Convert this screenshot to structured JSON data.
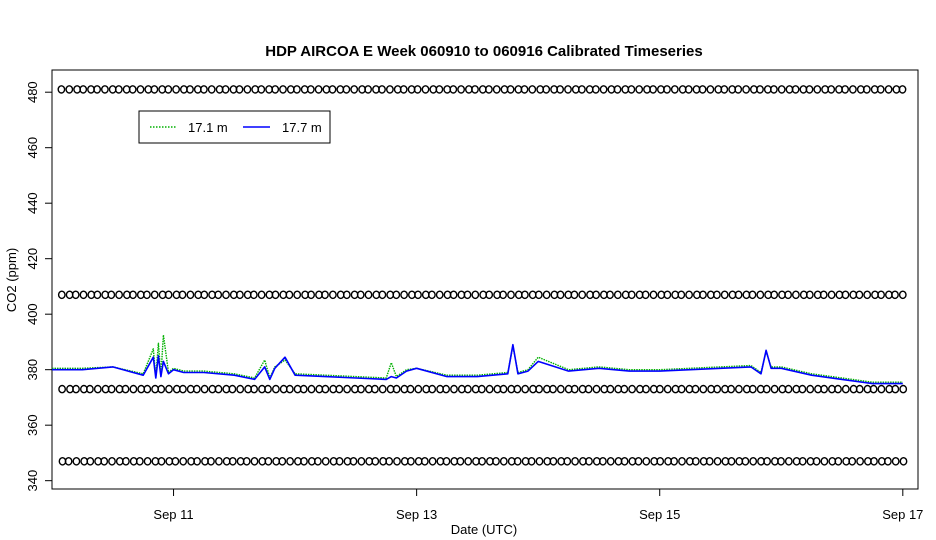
{
  "chart_data": {
    "type": "line",
    "title": "HDP AIRCOA E  Week 060910 to 060916  Calibrated Timeseries",
    "xlabel": "Date (UTC)",
    "ylabel": "CO2 (ppm)",
    "xlim": [
      "2006-09-10 00:00",
      "2006-09-17 03:00"
    ],
    "ylim": [
      337,
      488
    ],
    "x_ticks": [
      {
        "x": "2006-09-11",
        "label": "Sep 11"
      },
      {
        "x": "2006-09-13",
        "label": "Sep 13"
      },
      {
        "x": "2006-09-15",
        "label": "Sep 15"
      },
      {
        "x": "2006-09-17",
        "label": "Sep 17"
      }
    ],
    "y_ticks": [
      340,
      360,
      380,
      400,
      420,
      440,
      460,
      480
    ],
    "legend": {
      "placement": "top-left",
      "entries": [
        {
          "label": "17.1 m",
          "color": "#00b000",
          "style": "dotted"
        },
        {
          "label": "17.7 m",
          "color": "#0000ff",
          "style": "solid"
        }
      ]
    },
    "series": [
      {
        "name": "17.1 m",
        "color": "#00b000",
        "x": [
          "2006-09-10 00:00",
          "2006-09-10 06:00",
          "2006-09-10 12:00",
          "2006-09-10 18:00",
          "2006-09-10 20:00",
          "2006-09-10 20:30",
          "2006-09-10 21:00",
          "2006-09-10 21:30",
          "2006-09-10 22:00",
          "2006-09-10 23:00",
          "2006-09-11 00:00",
          "2006-09-11 02:00",
          "2006-09-11 06:00",
          "2006-09-11 12:00",
          "2006-09-11 16:00",
          "2006-09-11 18:00",
          "2006-09-11 19:00",
          "2006-09-11 20:00",
          "2006-09-11 22:00",
          "2006-09-12 00:00",
          "2006-09-12 06:00",
          "2006-09-12 12:00",
          "2006-09-12 18:00",
          "2006-09-12 19:00",
          "2006-09-12 20:00",
          "2006-09-12 22:00",
          "2006-09-13 00:00",
          "2006-09-13 06:00",
          "2006-09-13 12:00",
          "2006-09-13 18:00",
          "2006-09-13 19:00",
          "2006-09-13 20:00",
          "2006-09-13 22:00",
          "2006-09-14 00:00",
          "2006-09-14 06:00",
          "2006-09-14 12:00",
          "2006-09-14 18:00",
          "2006-09-15 00:00",
          "2006-09-15 06:00",
          "2006-09-15 12:00",
          "2006-09-15 18:00",
          "2006-09-15 20:00",
          "2006-09-15 21:00",
          "2006-09-15 22:00",
          "2006-09-16 00:00",
          "2006-09-16 06:00",
          "2006-09-16 12:00",
          "2006-09-16 18:00",
          "2006-09-17 00:00"
        ],
        "values": [
          380.5,
          380.5,
          381.0,
          378.5,
          387.5,
          377.5,
          389.5,
          378.0,
          392.5,
          379.0,
          380.5,
          379.5,
          379.5,
          378.5,
          377.0,
          383.5,
          377.0,
          381.0,
          383.5,
          378.5,
          378.0,
          377.5,
          377.0,
          382.5,
          377.5,
          380.0,
          380.5,
          378.0,
          378.0,
          379.0,
          388.5,
          379.0,
          380.0,
          384.5,
          380.0,
          381.0,
          380.0,
          380.0,
          380.5,
          381.0,
          381.5,
          379.0,
          386.5,
          381.0,
          381.0,
          378.5,
          377.0,
          375.5,
          375.5
        ]
      },
      {
        "name": "17.7 m",
        "color": "#0000ff",
        "x": [
          "2006-09-10 00:00",
          "2006-09-10 06:00",
          "2006-09-10 12:00",
          "2006-09-10 18:00",
          "2006-09-10 20:00",
          "2006-09-10 20:30",
          "2006-09-10 21:00",
          "2006-09-10 21:30",
          "2006-09-10 22:00",
          "2006-09-10 23:00",
          "2006-09-11 00:00",
          "2006-09-11 02:00",
          "2006-09-11 06:00",
          "2006-09-11 12:00",
          "2006-09-11 16:00",
          "2006-09-11 18:00",
          "2006-09-11 19:00",
          "2006-09-11 20:00",
          "2006-09-11 22:00",
          "2006-09-12 00:00",
          "2006-09-12 06:00",
          "2006-09-12 12:00",
          "2006-09-12 18:00",
          "2006-09-12 19:00",
          "2006-09-12 20:00",
          "2006-09-12 22:00",
          "2006-09-13 00:00",
          "2006-09-13 06:00",
          "2006-09-13 12:00",
          "2006-09-13 18:00",
          "2006-09-13 19:00",
          "2006-09-13 20:00",
          "2006-09-13 22:00",
          "2006-09-14 00:00",
          "2006-09-14 06:00",
          "2006-09-14 12:00",
          "2006-09-14 18:00",
          "2006-09-15 00:00",
          "2006-09-15 06:00",
          "2006-09-15 12:00",
          "2006-09-15 18:00",
          "2006-09-15 20:00",
          "2006-09-15 21:00",
          "2006-09-15 22:00",
          "2006-09-16 00:00",
          "2006-09-16 06:00",
          "2006-09-16 12:00",
          "2006-09-16 18:00",
          "2006-09-17 00:00"
        ],
        "values": [
          380.0,
          380.0,
          381.0,
          378.0,
          384.5,
          377.0,
          385.0,
          377.5,
          383.0,
          378.5,
          380.0,
          379.0,
          379.0,
          378.0,
          376.5,
          381.0,
          376.5,
          380.5,
          384.5,
          378.0,
          377.5,
          377.0,
          376.5,
          377.5,
          377.0,
          379.5,
          380.5,
          377.5,
          377.5,
          378.5,
          389.0,
          378.5,
          379.5,
          383.0,
          379.5,
          380.5,
          379.5,
          379.5,
          380.0,
          380.5,
          381.0,
          378.5,
          387.0,
          380.5,
          380.5,
          378.0,
          376.5,
          375.0,
          375.0
        ]
      },
      {
        "name": "",
        "type": "scatter",
        "marker": "open-circle",
        "color": "#000000",
        "x_range": [
          "2006-09-10 02:00",
          "2006-09-17 00:00"
        ],
        "rows": [
          481,
          407,
          373,
          347
        ]
      }
    ]
  }
}
